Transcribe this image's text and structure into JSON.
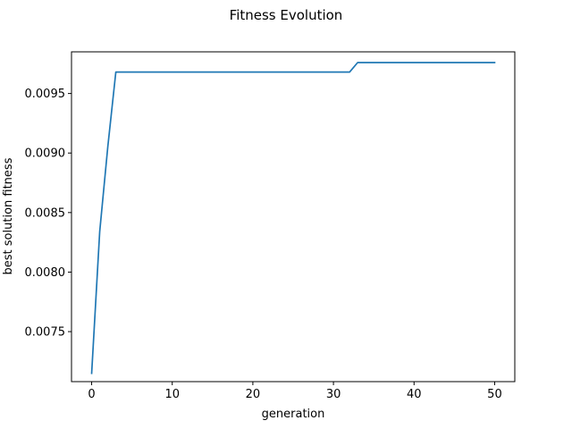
{
  "chart_data": {
    "type": "line",
    "title": "Fitness Evolution",
    "xlabel": "generation",
    "ylabel": "best solution fitness",
    "xlim": [
      -2.5,
      52.5
    ],
    "ylim": [
      0.00708,
      0.00985
    ],
    "xticks": [
      0,
      10,
      20,
      30,
      40,
      50
    ],
    "xtick_labels": [
      "0",
      "10",
      "20",
      "30",
      "40",
      "50"
    ],
    "yticks": [
      0.0075,
      0.008,
      0.0085,
      0.009,
      0.0095
    ],
    "ytick_labels": [
      "0.0075",
      "0.0080",
      "0.0085",
      "0.0090",
      "0.0095"
    ],
    "grid": false,
    "legend": false,
    "series": [
      {
        "color": "#1f77b4",
        "x": [
          0,
          1,
          2,
          3,
          4,
          5,
          6,
          7,
          8,
          9,
          10,
          11,
          12,
          13,
          14,
          15,
          16,
          17,
          18,
          19,
          20,
          21,
          22,
          23,
          24,
          25,
          26,
          27,
          28,
          29,
          30,
          31,
          32,
          33,
          34,
          35,
          36,
          37,
          38,
          39,
          40,
          41,
          42,
          43,
          44,
          45,
          46,
          47,
          48,
          49,
          50
        ],
        "y": [
          0.00715,
          0.00834,
          0.00905,
          0.00968,
          0.00968,
          0.00968,
          0.00968,
          0.00968,
          0.00968,
          0.00968,
          0.00968,
          0.00968,
          0.00968,
          0.00968,
          0.00968,
          0.00968,
          0.00968,
          0.00968,
          0.00968,
          0.00968,
          0.00968,
          0.00968,
          0.00968,
          0.00968,
          0.00968,
          0.00968,
          0.00968,
          0.00968,
          0.00968,
          0.00968,
          0.00968,
          0.00968,
          0.00968,
          0.00976,
          0.00976,
          0.00976,
          0.00976,
          0.00976,
          0.00976,
          0.00976,
          0.00976,
          0.00976,
          0.00976,
          0.00976,
          0.00976,
          0.00976,
          0.00976,
          0.00976,
          0.00976,
          0.00976,
          0.00976
        ]
      }
    ]
  }
}
